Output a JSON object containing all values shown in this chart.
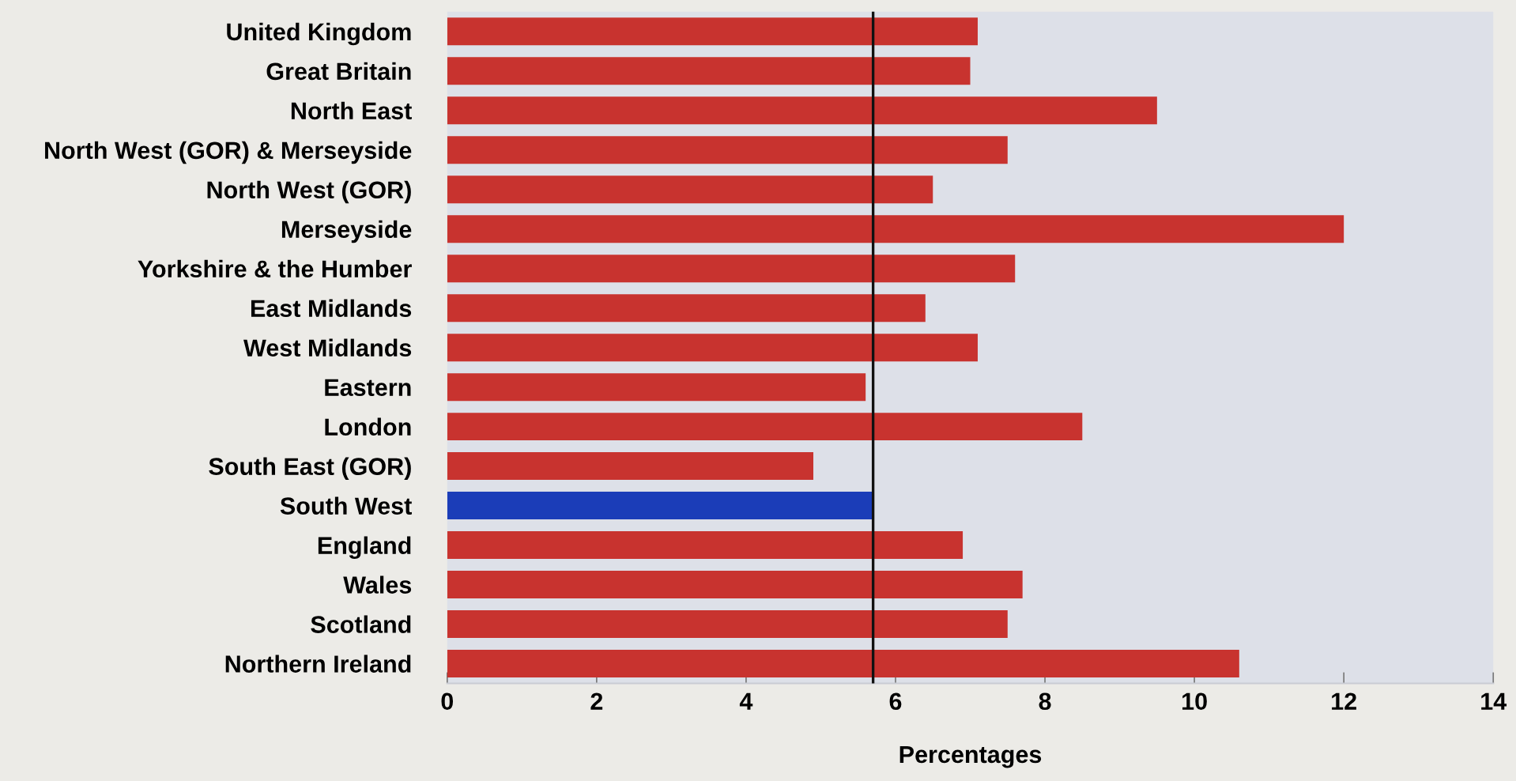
{
  "chart_data": {
    "type": "bar",
    "orientation": "horizontal",
    "xlabel": "Percentages",
    "categories": [
      "United Kingdom",
      "Great Britain",
      "North East",
      "North West (GOR) & Merseyside",
      "North West (GOR)",
      "Merseyside",
      "Yorkshire & the Humber",
      "East Midlands",
      "West Midlands",
      "Eastern",
      "London",
      "South East (GOR)",
      "South West",
      "England",
      "Wales",
      "Scotland",
      "Northern Ireland"
    ],
    "values": [
      7.1,
      7.0,
      9.5,
      7.5,
      6.5,
      12.0,
      7.6,
      6.4,
      7.1,
      5.6,
      8.5,
      4.9,
      5.7,
      6.9,
      7.7,
      7.5,
      10.6
    ],
    "colors": [
      "#c8332f",
      "#c8332f",
      "#c8332f",
      "#c8332f",
      "#c8332f",
      "#c8332f",
      "#c8332f",
      "#c8332f",
      "#c8332f",
      "#c8332f",
      "#c8332f",
      "#c8332f",
      "#1b3db8",
      "#c8332f",
      "#c8332f",
      "#c8332f",
      "#c8332f"
    ],
    "xlim": [
      0,
      14
    ],
    "xticks": [
      0,
      2,
      4,
      6,
      8,
      10,
      12,
      14
    ],
    "ref_lines": [
      {
        "axis": "x",
        "value": 5.7,
        "color": "#111111"
      }
    ],
    "grid": false,
    "legend": false
  }
}
